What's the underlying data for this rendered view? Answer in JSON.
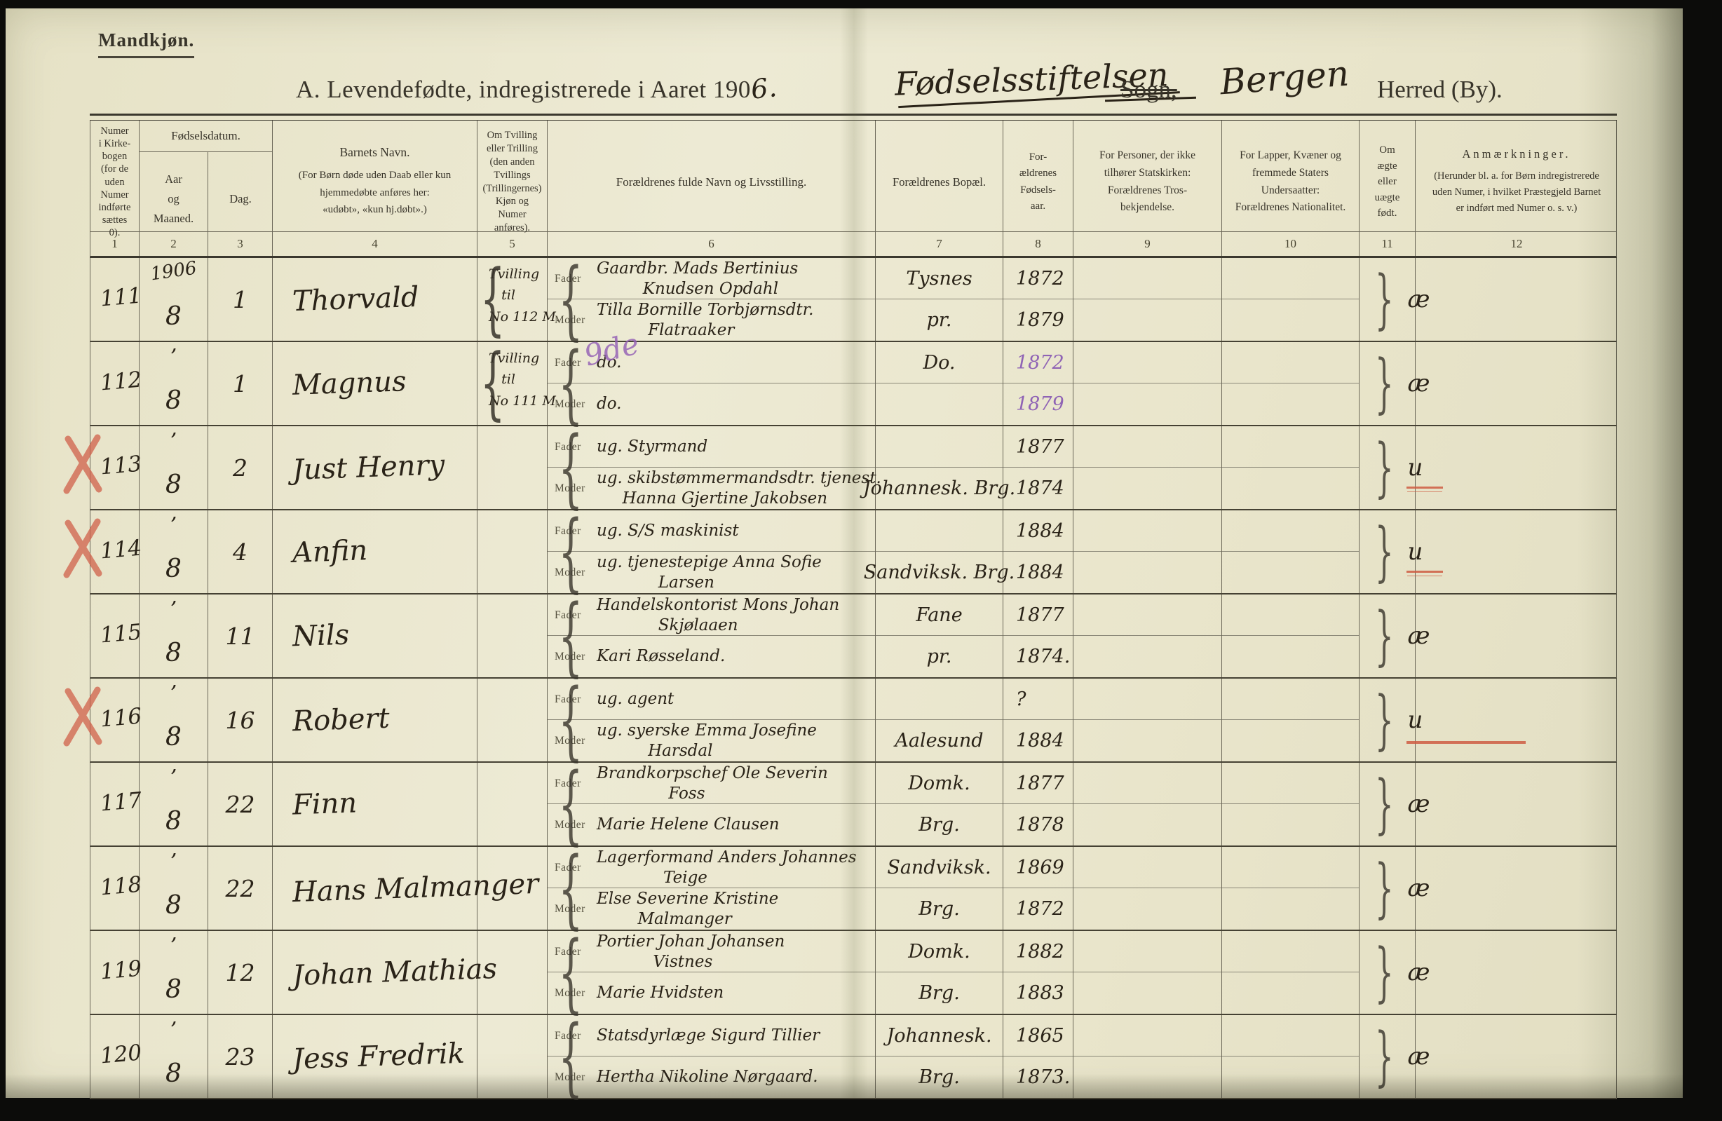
{
  "colors": {
    "paper": "#eae6cd",
    "ink": "#2a2318",
    "line": "#6b6758",
    "red_mark": "#cf6850",
    "purple_mark": "#8f63b5"
  },
  "page": {
    "corner_label": "Mandkjøn.",
    "title": {
      "printed_prefix": "A.  Levendefødte, indregistrerede i Aaret 190",
      "year_digit": "6.",
      "parish_handwritten": "Fødselsstiftelsen",
      "sogn_label": "Sogn,",
      "place_handwritten": "Bergen",
      "herred_label": "Herred (By)."
    }
  },
  "table": {
    "header": {
      "c1": "Numer\ni Kirke-\nbogen\n(for de\nuden\nNumer\nindførte\nsættes\n0).",
      "c23_group": "Fødselsdatum.",
      "c2": "Aar\nog\nMaaned.",
      "c3": "Dag.",
      "c4_title": "Barnets Navn.",
      "c4_sub": "(For Børn døde uden Daab eller kun\nhjemmedøbte anføres her:\n«udøbt», «kun hj.døbt».)",
      "c5": "Om Tvilling\neller Trilling\n(den anden\nTvillings\n(Trillingernes)\nKjøn og\nNumer\nanføres).",
      "c6": "Forældrenes fulde Navn og Livsstilling.",
      "c7": "Forældrenes Bopæl.",
      "c8": "For-\nældrenes\nFødsels-\naar.",
      "c9": "For Personer, der ikke\ntilhører Statskirken:\nForældrenes Tros-\nbekjendelse.",
      "c10": "For Lapper, Kvæner og\nfremmede Staters\nUndersaatter:\nForældrenes Nationalitet.",
      "c11": "Om\nægte\neller\nuægte\nfødt.",
      "c12_title": "Anmærkninger.",
      "c12_sub": "(Herunder bl. a. for Børn indregistrerede\nuden Numer, i hvilket Præstegjeld Barnet\ner indført med Numer o. s. v.)"
    },
    "column_numbers": [
      "1",
      "2",
      "3",
      "4",
      "5",
      "6",
      "7",
      "8",
      "9",
      "10",
      "11",
      "12"
    ],
    "row_labels": {
      "fader": "Fader",
      "moder": "Moder"
    },
    "rows": [
      {
        "no": "111",
        "red_x": false,
        "year_top": "1906",
        "month": "8",
        "day": "1",
        "name": "Thorvald",
        "twin": "Tvilling\n   til\nNo 112 M.",
        "fader": "Gaardbr. Mads Bertinius\n         Knudsen Opdahl",
        "fader_note": "",
        "moder": "Tilla Bornille Torbjørnsdtr.\n          Flatraaker",
        "bopel_top": "Tysnes",
        "bopel_bottom": "pr.",
        "aar_fader": "1872",
        "aar_moder": "1879",
        "aar_purple": false,
        "legit": "æ",
        "red_underline": ""
      },
      {
        "no": "112",
        "red_x": false,
        "year_top": "’",
        "month": "8",
        "day": "1",
        "name": "Magnus",
        "twin": "Tvilling\n   til\nNo 111 M.",
        "fader": "do.",
        "fader_note": "9de",
        "moder": "do.",
        "bopel_top": "Do.",
        "bopel_bottom": "",
        "aar_fader": "1872",
        "aar_moder": "1879",
        "aar_purple": true,
        "legit": "æ",
        "red_underline": ""
      },
      {
        "no": "113",
        "red_x": true,
        "year_top": "’",
        "month": "8",
        "day": "2",
        "name": "Just Henry",
        "twin": "",
        "fader": "ug. Styrmand",
        "fader_note": "",
        "moder": "ug. skibstømmermandsdtr. tjenest.\n     Hanna Gjertine Jakobsen",
        "bopel_top": "",
        "bopel_bottom": "Johannesk.  Brg.",
        "aar_fader": "1877",
        "aar_moder": "1874",
        "aar_purple": false,
        "legit": "u",
        "red_underline": "double"
      },
      {
        "no": "114",
        "red_x": true,
        "year_top": "’",
        "month": "8",
        "day": "4",
        "name": "Anfin",
        "twin": "",
        "fader": "ug. S/S maskinist",
        "fader_note": "",
        "moder": "ug. tjenestepige Anna Sofie\n            Larsen",
        "bopel_top": "",
        "bopel_bottom": "Sandviksk.  Brg.",
        "aar_fader": "1884",
        "aar_moder": "1884",
        "aar_purple": false,
        "legit": "u",
        "red_underline": "double"
      },
      {
        "no": "115",
        "red_x": false,
        "year_top": "’",
        "month": "8",
        "day": "11",
        "name": "Nils",
        "twin": "",
        "fader": "Handelskontorist Mons Johan\n            Skjølaaen",
        "fader_note": "",
        "moder": "Kari Røsseland.",
        "bopel_top": "Fane",
        "bopel_bottom": "pr.",
        "aar_fader": "1877",
        "aar_moder": "1874.",
        "aar_purple": false,
        "legit": "æ",
        "red_underline": ""
      },
      {
        "no": "116",
        "red_x": true,
        "year_top": "’",
        "month": "8",
        "day": "16",
        "name": "Robert",
        "twin": "",
        "fader": "ug. agent",
        "fader_note": "",
        "moder": "ug. syerske Emma Josefine\n          Harsdal",
        "bopel_top": "",
        "bopel_bottom": "Aalesund",
        "aar_fader": "?",
        "aar_moder": "1884",
        "aar_purple": false,
        "legit": "u",
        "red_underline": "long"
      },
      {
        "no": "117",
        "red_x": false,
        "year_top": "’",
        "month": "8",
        "day": "22",
        "name": "Finn",
        "twin": "",
        "fader": "Brandkorpschef Ole Severin\n              Foss",
        "fader_note": "",
        "moder": "Marie Helene Clausen",
        "bopel_top": "Domk.",
        "bopel_bottom": "Brg.",
        "aar_fader": "1877",
        "aar_moder": "1878",
        "aar_purple": false,
        "legit": "æ",
        "red_underline": ""
      },
      {
        "no": "118",
        "red_x": false,
        "year_top": "’",
        "month": "8",
        "day": "22",
        "name": "Hans Malmanger",
        "twin": "",
        "fader": "Lagerformand Anders Johannes\n             Teige",
        "fader_note": "",
        "moder": "Else Severine Kristine\n        Malmanger",
        "bopel_top": "Sandviksk.",
        "bopel_bottom": "Brg.",
        "aar_fader": "1869",
        "aar_moder": "1872",
        "aar_purple": false,
        "legit": "æ",
        "red_underline": ""
      },
      {
        "no": "119",
        "red_x": false,
        "year_top": "’",
        "month": "8",
        "day": "12",
        "name": "Johan Mathias",
        "twin": "",
        "fader": "Portier Johan Johansen\n           Vistnes",
        "fader_note": "",
        "moder": "Marie Hvidsten",
        "bopel_top": "Domk.",
        "bopel_bottom": "Brg.",
        "aar_fader": "1882",
        "aar_moder": "1883",
        "aar_purple": false,
        "legit": "æ",
        "red_underline": ""
      },
      {
        "no": "120",
        "red_x": false,
        "year_top": "’",
        "month": "8",
        "day": "23",
        "name": "Jess Fredrik",
        "twin": "",
        "fader": "Statsdyrlæge Sigurd Tillier",
        "fader_note": "",
        "moder": "Hertha Nikoline Nørgaard.",
        "bopel_top": "Johannesk.",
        "bopel_bottom": "Brg.",
        "aar_fader": "1865",
        "aar_moder": "1873.",
        "aar_purple": false,
        "legit": "æ",
        "red_underline": ""
      }
    ]
  }
}
